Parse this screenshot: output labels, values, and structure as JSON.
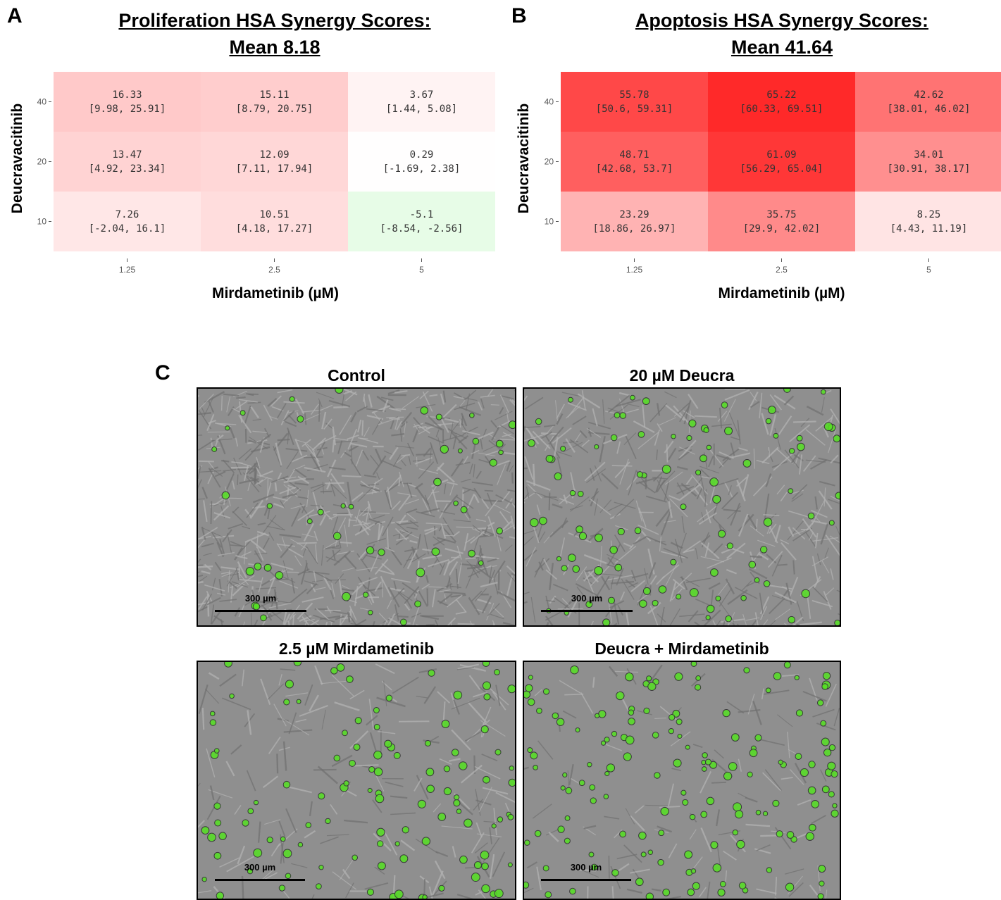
{
  "panels": {
    "a_letter": "A",
    "b_letter": "B",
    "c_letter": "C"
  },
  "chart_data": [
    {
      "type": "heatmap",
      "title": "Proliferation HSA Synergy Scores:",
      "subtitle": "Mean 8.18",
      "xlabel": "Mirdametinib (µM)",
      "ylabel": "Deucravacitinib",
      "x_categories": [
        "1.25",
        "2.5",
        "5"
      ],
      "y_categories": [
        "10",
        "20",
        "40"
      ],
      "cells": [
        {
          "x": "1.25",
          "y": "40",
          "value": 16.33,
          "ci": "[9.98, 25.91]"
        },
        {
          "x": "2.5",
          "y": "40",
          "value": 15.11,
          "ci": "[8.79, 20.75]"
        },
        {
          "x": "5",
          "y": "40",
          "value": 3.67,
          "ci": "[1.44, 5.08]"
        },
        {
          "x": "1.25",
          "y": "20",
          "value": 13.47,
          "ci": "[4.92, 23.34]"
        },
        {
          "x": "2.5",
          "y": "20",
          "value": 12.09,
          "ci": "[7.11, 17.94]"
        },
        {
          "x": "5",
          "y": "20",
          "value": 0.29,
          "ci": "[-1.69, 2.38]"
        },
        {
          "x": "1.25",
          "y": "10",
          "value": 7.26,
          "ci": "[-2.04, 16.1]"
        },
        {
          "x": "2.5",
          "y": "10",
          "value": 10.51,
          "ci": "[4.18, 17.27]"
        },
        {
          "x": "5",
          "y": "10",
          "value": -5.1,
          "ci": "[-8.54, -2.56]"
        }
      ],
      "colors": {
        "positive": "#ff2020",
        "negative": "#7cf07c",
        "neutral": "#ffffff"
      }
    },
    {
      "type": "heatmap",
      "title": "Apoptosis HSA Synergy Scores:",
      "subtitle": "Mean 41.64",
      "xlabel": "Mirdametinib (µM)",
      "ylabel": "Deucravacitinib",
      "x_categories": [
        "1.25",
        "2.5",
        "5"
      ],
      "y_categories": [
        "10",
        "20",
        "40"
      ],
      "cells": [
        {
          "x": "1.25",
          "y": "40",
          "value": 55.78,
          "ci": "[50.6, 59.31]"
        },
        {
          "x": "2.5",
          "y": "40",
          "value": 65.22,
          "ci": "[60.33, 69.51]"
        },
        {
          "x": "5",
          "y": "40",
          "value": 42.62,
          "ci": "[38.01, 46.02]"
        },
        {
          "x": "1.25",
          "y": "20",
          "value": 48.71,
          "ci": "[42.68, 53.7]"
        },
        {
          "x": "2.5",
          "y": "20",
          "value": 61.09,
          "ci": "[56.29, 65.04]"
        },
        {
          "x": "5",
          "y": "20",
          "value": 34.01,
          "ci": "[30.91, 38.17]"
        },
        {
          "x": "1.25",
          "y": "10",
          "value": 23.29,
          "ci": "[18.86, 26.97]"
        },
        {
          "x": "2.5",
          "y": "10",
          "value": 35.75,
          "ci": "[29.9, 42.02]"
        },
        {
          "x": "5",
          "y": "10",
          "value": 8.25,
          "ci": "[4.43, 11.19]"
        }
      ],
      "colors": {
        "positive": "#ff2020",
        "negative": "#7cf07c",
        "neutral": "#ffffff"
      }
    }
  ],
  "micrographs": [
    {
      "title": "Control",
      "scale_label": "300 µm"
    },
    {
      "title": "20 µM Deucra",
      "scale_label": "300 µm"
    },
    {
      "title": "2.5 µM Mirdametinib",
      "scale_label": "300 µm"
    },
    {
      "title": "Deucra + Mirdametinib",
      "scale_label": "300 µm"
    }
  ],
  "micrograph_colors": {
    "background": "#8f8f8f",
    "cell_outline": "#5a5a5a",
    "apoptotic_marker": "#55e022"
  }
}
